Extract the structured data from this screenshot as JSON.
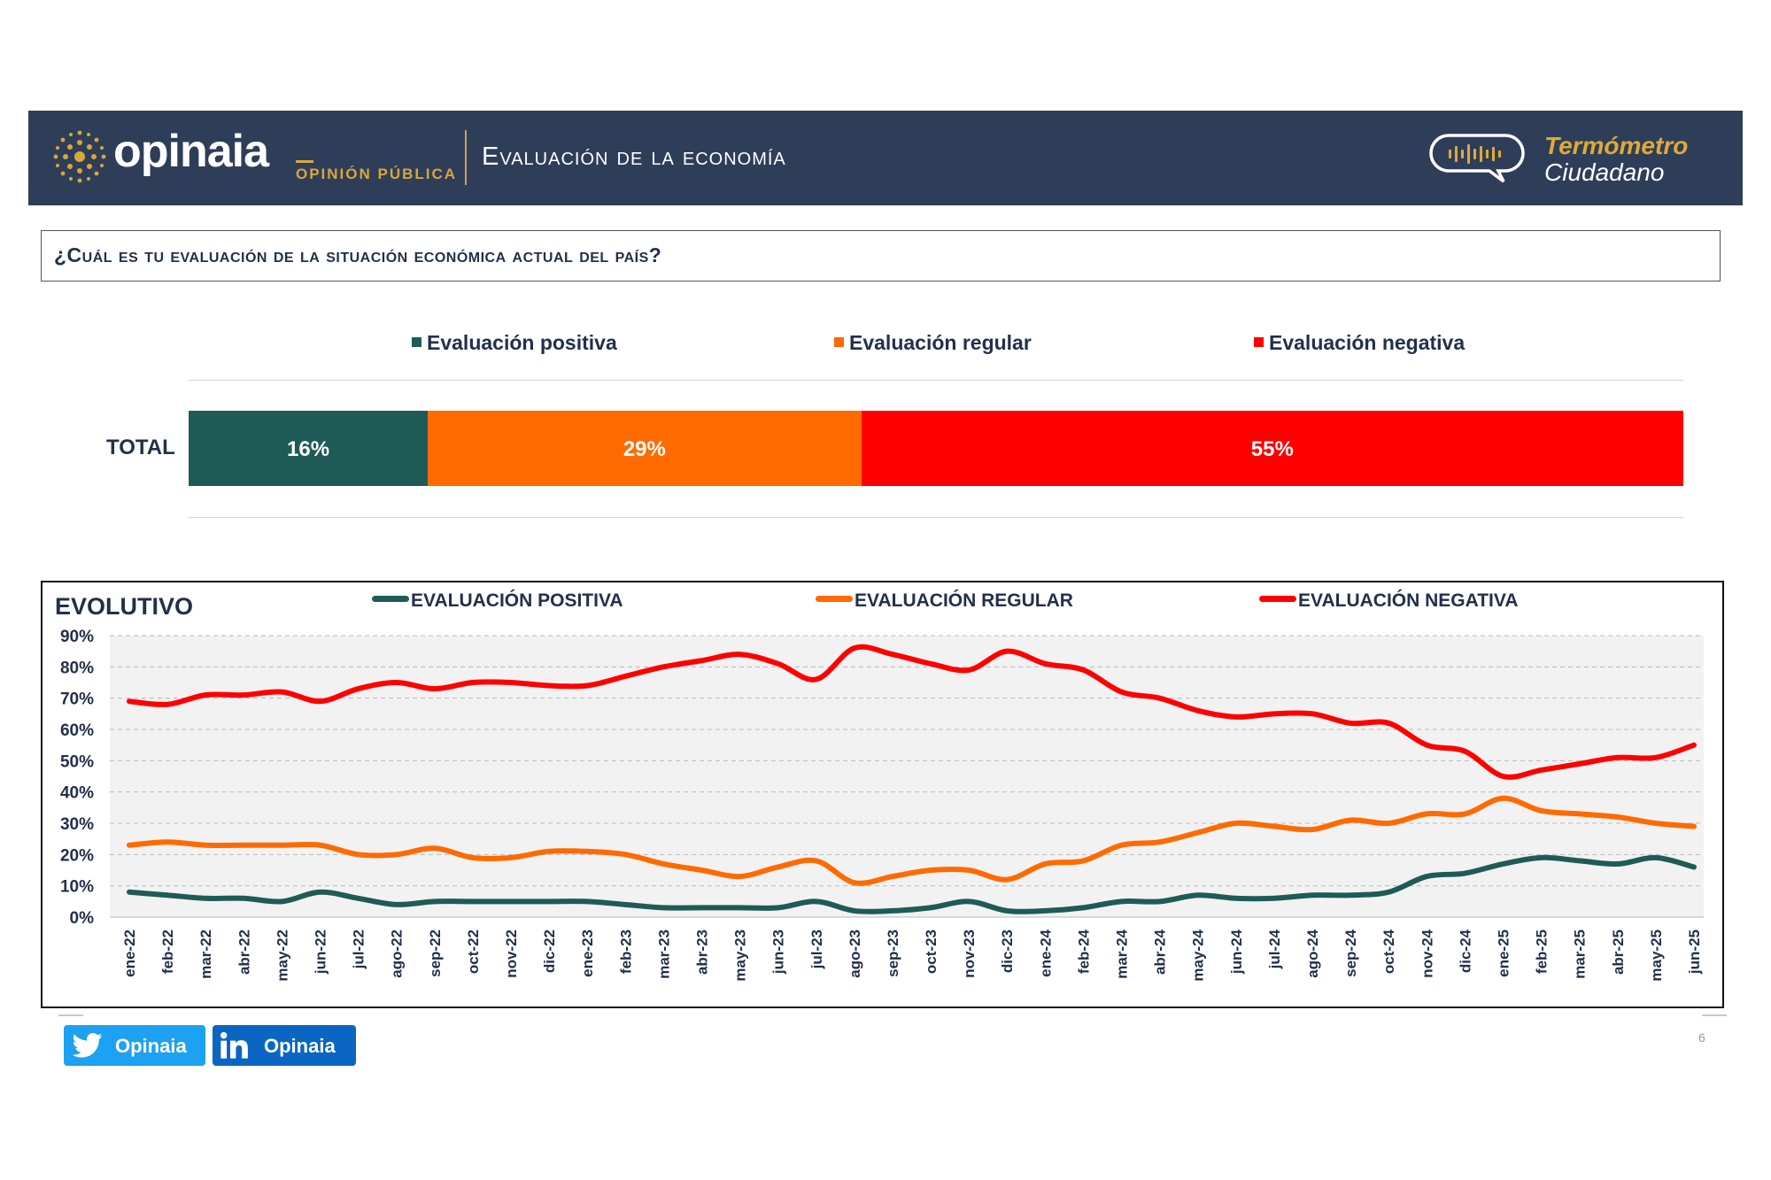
{
  "header": {
    "brand": "opinaia",
    "brand_sub": "OPINIÓN PÚBLICA",
    "title": "Evaluación de la economía",
    "badge_line1": "Termómetro",
    "badge_line2": "Ciudadano"
  },
  "question": "¿Cuál es tu evaluación de la situación económica actual del país?",
  "legend": {
    "positive": "Evaluación positiva",
    "regular": "Evaluación regular",
    "negative": "Evaluación negativa"
  },
  "total": {
    "label": "TOTAL",
    "positive": "16%",
    "regular": "29%",
    "negative": "55%"
  },
  "evolutivo": {
    "title": "EVOLUTIVO",
    "legend_positive": "EVALUACIÓN POSITIVA",
    "legend_regular": "EVALUACIÓN REGULAR",
    "legend_negative": "EVALUACIÓN NEGATIVA"
  },
  "colors": {
    "positive": "#1e5b57",
    "regular": "#ff6a00",
    "negative": "#ff0000",
    "header_bg": "#2f3e58",
    "text_dark": "#22304a"
  },
  "social": {
    "twitter": "Opinaia",
    "linkedin": "Opinaia"
  },
  "page_number": "6",
  "chart_data": [
    {
      "type": "bar",
      "categories": [
        "TOTAL"
      ],
      "series": [
        {
          "name": "Evaluación positiva",
          "values": [
            16
          ]
        },
        {
          "name": "Evaluación regular",
          "values": [
            29
          ]
        },
        {
          "name": "Evaluación negativa",
          "values": [
            55
          ]
        }
      ],
      "stacked": true,
      "orientation": "horizontal",
      "data_labels": [
        "16%",
        "29%",
        "55%"
      ]
    },
    {
      "type": "line",
      "title": "EVOLUTIVO",
      "x": [
        "ene-22",
        "feb-22",
        "mar-22",
        "abr-22",
        "may-22",
        "jun-22",
        "jul-22",
        "ago-22",
        "sep-22",
        "oct-22",
        "nov-22",
        "dic-22",
        "ene-23",
        "feb-23",
        "mar-23",
        "abr-23",
        "may-23",
        "jun-23",
        "jul-23",
        "ago-23",
        "sep-23",
        "oct-23",
        "nov-23",
        "dic-23",
        "ene-24",
        "feb-24",
        "mar-24",
        "abr-24",
        "may-24",
        "jun-24",
        "jul-24",
        "ago-24",
        "sep-24",
        "oct-24",
        "nov-24",
        "dic-24",
        "ene-25",
        "feb-25",
        "mar-25",
        "abr-25",
        "may-25",
        "jun-25"
      ],
      "yticks": [
        "0%",
        "10%",
        "20%",
        "30%",
        "40%",
        "50%",
        "60%",
        "70%",
        "80%",
        "90%"
      ],
      "ylim": [
        0,
        90
      ],
      "grid": true,
      "legend_position": "top",
      "series": [
        {
          "name": "EVALUACIÓN POSITIVA",
          "values": [
            8,
            7,
            6,
            6,
            5,
            8,
            6,
            4,
            5,
            5,
            5,
            5,
            5,
            4,
            3,
            3,
            3,
            3,
            5,
            2,
            2,
            3,
            5,
            2,
            2,
            3,
            5,
            5,
            7,
            6,
            6,
            7,
            7,
            8,
            13,
            14,
            17,
            19,
            18,
            17,
            19,
            16
          ]
        },
        {
          "name": "EVALUACIÓN REGULAR",
          "values": [
            23,
            24,
            23,
            23,
            23,
            23,
            20,
            20,
            22,
            19,
            19,
            21,
            21,
            20,
            17,
            15,
            13,
            16,
            18,
            11,
            13,
            15,
            15,
            12,
            17,
            18,
            23,
            24,
            27,
            30,
            29,
            28,
            31,
            30,
            33,
            33,
            38,
            34,
            33,
            32,
            30,
            29
          ]
        },
        {
          "name": "EVALUACIÓN NEGATIVA",
          "values": [
            69,
            68,
            71,
            71,
            72,
            69,
            73,
            75,
            73,
            75,
            75,
            74,
            74,
            77,
            80,
            82,
            84,
            81,
            76,
            86,
            84,
            81,
            79,
            85,
            81,
            79,
            72,
            70,
            66,
            64,
            65,
            65,
            62,
            62,
            55,
            53,
            45,
            47,
            49,
            51,
            51,
            55
          ]
        }
      ]
    }
  ]
}
